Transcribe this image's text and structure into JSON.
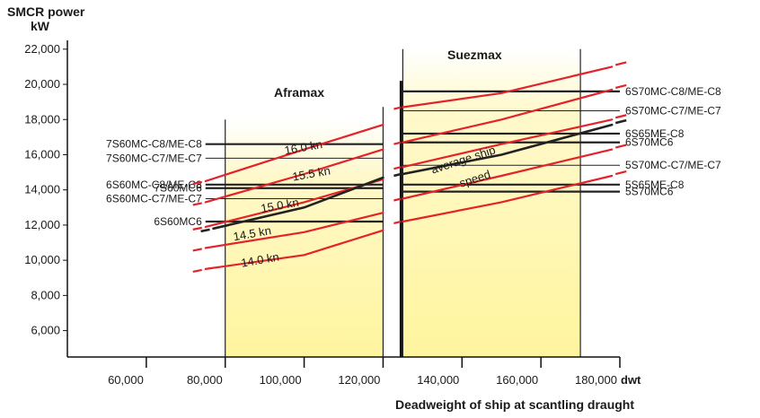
{
  "chart_data": {
    "type": "line",
    "title": "",
    "ylabel_line1": "SMCR power",
    "ylabel_line2": "kW",
    "xlabel": "Deadweight of ship at scantling draught",
    "x_unit": "dwt",
    "xlim": [
      40000,
      180000
    ],
    "ylim": [
      4500,
      22500
    ],
    "x_ticks": [
      60000,
      80000,
      100000,
      120000,
      140000,
      160000,
      180000
    ],
    "x_tick_labels": [
      "60,000",
      "80,000",
      "100,000",
      "120,000",
      "140,000",
      "160,000",
      "180,000"
    ],
    "y_ticks": [
      6000,
      8000,
      10000,
      12000,
      14000,
      16000,
      18000,
      20000,
      22000
    ],
    "y_tick_labels": [
      "6,000",
      "8,000",
      "10,000",
      "12,000",
      "14,000",
      "16,000",
      "18,000",
      "20,000",
      "22,000"
    ],
    "segments": [
      {
        "name": "Aframax",
        "x_range": [
          80000,
          120000
        ],
        "color": "#fff59e"
      },
      {
        "name": "Suezmax",
        "x_range": [
          125000,
          170000
        ],
        "color": "#fff59e"
      }
    ],
    "engines": [
      {
        "label": "7S60MC-C8/ME-C8",
        "power": 16600,
        "x_range": [
          80000,
          120000
        ],
        "side": "left"
      },
      {
        "label": "7S60MC-C7/ME-C7",
        "power": 15800,
        "x_range": [
          80000,
          120000
        ],
        "side": "left"
      },
      {
        "label": "6S60MC-C8/ME-C8",
        "power": 14300,
        "x_range": [
          80000,
          120000
        ],
        "side": "left"
      },
      {
        "label": "7S60MC6",
        "power": 14100,
        "x_range": [
          80000,
          120000
        ],
        "side": "left"
      },
      {
        "label": "6S60MC-C7/ME-C7",
        "power": 13500,
        "x_range": [
          80000,
          120000
        ],
        "side": "left"
      },
      {
        "label": "6S60MC6",
        "power": 12200,
        "x_range": [
          80000,
          120000
        ],
        "side": "left"
      },
      {
        "label": "6S70MC-C8/ME-C8",
        "power": 19600,
        "x_range": [
          125000,
          180000
        ],
        "side": "right"
      },
      {
        "label": "6S70MC-C7/ME-C7",
        "power": 18500,
        "x_range": [
          125000,
          180000
        ],
        "side": "right"
      },
      {
        "label": "6S65ME-C8",
        "power": 17200,
        "x_range": [
          125000,
          180000
        ],
        "side": "right"
      },
      {
        "label": "6S70MC6",
        "power": 16700,
        "x_range": [
          125000,
          180000
        ],
        "side": "right"
      },
      {
        "label": "5S70MC-C7/ME-C7",
        "power": 15400,
        "x_range": [
          125000,
          180000
        ],
        "side": "right"
      },
      {
        "label": "5S65ME-C8",
        "power": 14300,
        "x_range": [
          125000,
          180000
        ],
        "side": "right"
      },
      {
        "label": "5S70MC6",
        "power": 13900,
        "x_range": [
          125000,
          180000
        ],
        "side": "right"
      }
    ],
    "series": [
      {
        "name": "16.0 kn",
        "color": "#e3232a",
        "values": [
          {
            "x": 75000,
            "y": 14500
          },
          {
            "x": 100000,
            "y": 16300
          },
          {
            "x": 120000,
            "y": 17700
          },
          {
            "x": 125000,
            "y": 18700
          },
          {
            "x": 150000,
            "y": 19500
          },
          {
            "x": 178000,
            "y": 21000
          }
        ]
      },
      {
        "name": "15.5 kn",
        "color": "#e3232a",
        "values": [
          {
            "x": 75000,
            "y": 13300
          },
          {
            "x": 100000,
            "y": 14900
          },
          {
            "x": 120000,
            "y": 16300
          },
          {
            "x": 125000,
            "y": 16700
          },
          {
            "x": 150000,
            "y": 18000
          },
          {
            "x": 178000,
            "y": 19700
          }
        ]
      },
      {
        "name": "15.0 kn",
        "color": "#e3232a",
        "values": [
          {
            "x": 75000,
            "y": 11900
          },
          {
            "x": 100000,
            "y": 13300
          },
          {
            "x": 120000,
            "y": 14600
          },
          {
            "x": 125000,
            "y": 15300
          },
          {
            "x": 150000,
            "y": 16600
          },
          {
            "x": 178000,
            "y": 18000
          }
        ]
      },
      {
        "name": "14.5 kn",
        "color": "#e3232a",
        "values": [
          {
            "x": 75000,
            "y": 10700
          },
          {
            "x": 100000,
            "y": 11600
          },
          {
            "x": 120000,
            "y": 12700
          },
          {
            "x": 125000,
            "y": 13500
          },
          {
            "x": 150000,
            "y": 14800
          },
          {
            "x": 178000,
            "y": 16300
          }
        ]
      },
      {
        "name": "14.0 kn",
        "color": "#e3232a",
        "values": [
          {
            "x": 75000,
            "y": 9500
          },
          {
            "x": 100000,
            "y": 10300
          },
          {
            "x": 120000,
            "y": 11700
          },
          {
            "x": 125000,
            "y": 12200
          },
          {
            "x": 150000,
            "y": 13300
          },
          {
            "x": 178000,
            "y": 14800
          }
        ]
      },
      {
        "name": "average ship speed",
        "color": "#222222",
        "values": [
          {
            "x": 77000,
            "y": 11800
          },
          {
            "x": 100000,
            "y": 13000
          },
          {
            "x": 120000,
            "y": 14700
          },
          {
            "x": 125000,
            "y": 14900
          },
          {
            "x": 150000,
            "y": 16000
          },
          {
            "x": 178000,
            "y": 17700
          }
        ]
      }
    ],
    "speed_labels": [
      {
        "text": "16.0 kn",
        "x": 100000,
        "y": 16200
      },
      {
        "text": "15.5 kn",
        "x": 102000,
        "y": 14700
      },
      {
        "text": "15.0 kn",
        "x": 94000,
        "y": 12900
      },
      {
        "text": "14.5 kn",
        "x": 87000,
        "y": 11300
      },
      {
        "text": "14.0 kn",
        "x": 89000,
        "y": 9800
      }
    ],
    "avg_speed_label_line1": "average ship",
    "avg_speed_label_line2": "speed",
    "segment_label_aframax": "Aframax",
    "segment_label_suezmax": "Suezmax",
    "grid": false
  }
}
